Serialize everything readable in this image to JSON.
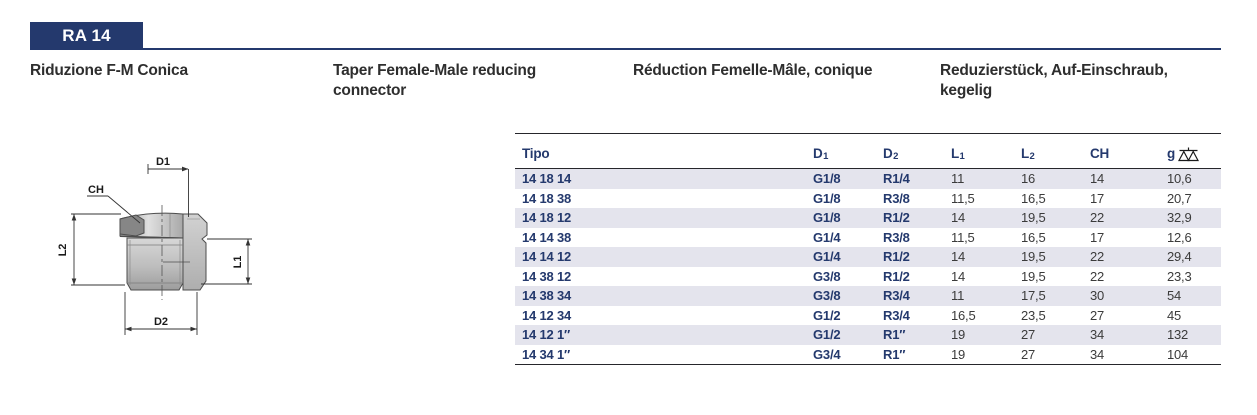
{
  "header": {
    "code": "RA 14"
  },
  "titles": {
    "it": "Riduzione F-M Conica",
    "en": "Taper Female-Male reducing connector",
    "fr": "Réduction Femelle-Mâle, conique",
    "de": "Reduzierstück, Auf-Einschraub, kegelig"
  },
  "diagram": {
    "labels": {
      "d1": "D1",
      "ch": "CH",
      "l2": "L2",
      "l1": "L1",
      "d2": "D2"
    }
  },
  "table": {
    "columns": [
      {
        "label": "Tipo",
        "sub": ""
      },
      {
        "label": "D",
        "sub": "1"
      },
      {
        "label": "D",
        "sub": "2"
      },
      {
        "label": "L",
        "sub": "1"
      },
      {
        "label": "L",
        "sub": "2"
      },
      {
        "label": "CH",
        "sub": ""
      },
      {
        "label": "g",
        "sub": "",
        "icon": "scale-icon"
      }
    ],
    "rows": [
      [
        "14 18 14",
        "G1/8",
        "R1/4",
        "11",
        "16",
        "14",
        "10,6"
      ],
      [
        "14 18 38",
        "G1/8",
        "R3/8",
        "11,5",
        "16,5",
        "17",
        "20,7"
      ],
      [
        "14 18 12",
        "G1/8",
        "R1/2",
        "14",
        "19,5",
        "22",
        "32,9"
      ],
      [
        "14 14 38",
        "G1/4",
        "R3/8",
        "11,5",
        "16,5",
        "17",
        "12,6"
      ],
      [
        "14 14 12",
        "G1/4",
        "R1/2",
        "14",
        "19,5",
        "22",
        "29,4"
      ],
      [
        "14 38 12",
        "G3/8",
        "R1/2",
        "14",
        "19,5",
        "22",
        "23,3"
      ],
      [
        "14 38 34",
        "G3/8",
        "R3/4",
        "11",
        "17,5",
        "30",
        "54"
      ],
      [
        "14 12 34",
        "G1/2",
        "R3/4",
        "16,5",
        "23,5",
        "27",
        "45"
      ],
      [
        "14 12 1″",
        "G1/2",
        "R1″",
        "19",
        "27",
        "34",
        "132"
      ],
      [
        "14 34 1″",
        "G3/4",
        "R1″",
        "19",
        "27",
        "34",
        "104"
      ]
    ]
  },
  "colors": {
    "navy": "#24396d",
    "stripe": "#e4e4ed",
    "rule": "#26262b",
    "num": "#3b3b3b",
    "title": "#2e2e2e"
  }
}
